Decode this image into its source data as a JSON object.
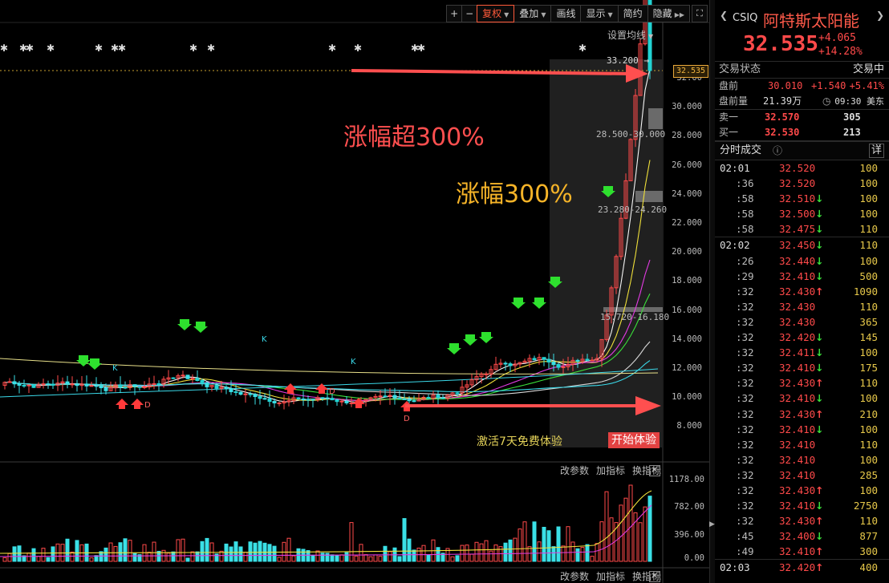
{
  "toolbar": {
    "plus": "+",
    "minus": "−",
    "adjust": "复权",
    "overlay": "叠加",
    "draw": "画线",
    "display": "显示",
    "compact": "简约",
    "hide": "隐藏",
    "ma_settings": "设置均线"
  },
  "price_axis": [
    "32.00",
    "30.000",
    "28.000",
    "26.000",
    "24.000",
    "22.000",
    "20.000",
    "18.000",
    "16.000",
    "14.000",
    "12.000",
    "10.000",
    "8.000"
  ],
  "volume_axis": [
    "1178.00",
    "782.00",
    "396.00",
    "0.00"
  ],
  "current_price_marker": "32.535",
  "labels": {
    "high": "33.200",
    "zone1": "28.500-30.000",
    "zone2": "23.280-24.260",
    "zone3": "15.720-16.180"
  },
  "annotations": {
    "over300": "涨幅超300%",
    "gain300": "涨幅300%"
  },
  "trial": {
    "text": "激活7天免费体验",
    "button": "开始体验"
  },
  "sub_toolbar": {
    "change_params": "改参数",
    "add_indicator": "加指标",
    "swap_indicator": "换指标",
    "close": "✕"
  },
  "quote": {
    "ticker": "CSIQ",
    "name": "阿特斯太阳能",
    "last": "32.535",
    "change": "+4.065",
    "change_pct": "+14.28%",
    "status_label": "交易状态",
    "status_value": "交易中",
    "premarket_label": "盘前",
    "premarket_price": "30.010",
    "premarket_change": "+1.540",
    "premarket_pct": "+5.41%",
    "premarket_vol_label": "盘前量",
    "premarket_vol": "21.39万",
    "time": "09:30 美东",
    "ask_label": "卖一",
    "ask_price": "32.570",
    "ask_size": "305",
    "bid_label": "买一",
    "bid_price": "32.530",
    "bid_size": "213",
    "ticks_title": "分时成交",
    "ticks_detail": "详"
  },
  "ticks": [
    {
      "time": "02:01",
      "price": "32.520",
      "dir": "",
      "vol": "100",
      "sep": false
    },
    {
      "time": ":36",
      "price": "32.520",
      "dir": "",
      "vol": "100",
      "sep": false
    },
    {
      "time": ":58",
      "price": "32.510",
      "dir": "dn",
      "vol": "100",
      "sep": false
    },
    {
      "time": ":58",
      "price": "32.500",
      "dir": "dn",
      "vol": "100",
      "sep": false
    },
    {
      "time": ":58",
      "price": "32.475",
      "dir": "dn",
      "vol": "110",
      "sep": false
    },
    {
      "time": "02:02",
      "price": "32.450",
      "dir": "dn",
      "vol": "110",
      "sep": true
    },
    {
      "time": ":26",
      "price": "32.440",
      "dir": "dn",
      "vol": "100",
      "sep": false
    },
    {
      "time": ":29",
      "price": "32.410",
      "dir": "dn",
      "vol": "500",
      "sep": false
    },
    {
      "time": ":32",
      "price": "32.430",
      "dir": "up",
      "vol": "1090",
      "sep": false
    },
    {
      "time": ":32",
      "price": "32.430",
      "dir": "",
      "vol": "110",
      "sep": false
    },
    {
      "time": ":32",
      "price": "32.430",
      "dir": "",
      "vol": "365",
      "sep": false
    },
    {
      "time": ":32",
      "price": "32.420",
      "dir": "dn",
      "vol": "145",
      "sep": false
    },
    {
      "time": ":32",
      "price": "32.411",
      "dir": "dn",
      "vol": "100",
      "sep": false
    },
    {
      "time": ":32",
      "price": "32.410",
      "dir": "dn",
      "vol": "175",
      "sep": false
    },
    {
      "time": ":32",
      "price": "32.430",
      "dir": "up",
      "vol": "110",
      "sep": false
    },
    {
      "time": ":32",
      "price": "32.410",
      "dir": "dn",
      "vol": "100",
      "sep": false
    },
    {
      "time": ":32",
      "price": "32.430",
      "dir": "up",
      "vol": "210",
      "sep": false
    },
    {
      "time": ":32",
      "price": "32.410",
      "dir": "dn",
      "vol": "100",
      "sep": false
    },
    {
      "time": ":32",
      "price": "32.410",
      "dir": "",
      "vol": "110",
      "sep": false
    },
    {
      "time": ":32",
      "price": "32.410",
      "dir": "",
      "vol": "100",
      "sep": false
    },
    {
      "time": ":32",
      "price": "32.410",
      "dir": "",
      "vol": "285",
      "sep": false
    },
    {
      "time": ":32",
      "price": "32.430",
      "dir": "up",
      "vol": "100",
      "sep": false
    },
    {
      "time": ":32",
      "price": "32.410",
      "dir": "dn",
      "vol": "2750",
      "sep": false
    },
    {
      "time": ":32",
      "price": "32.430",
      "dir": "up",
      "vol": "110",
      "sep": false
    },
    {
      "time": ":45",
      "price": "32.400",
      "dir": "dn",
      "vol": "877",
      "sep": false
    },
    {
      "time": ":49",
      "price": "32.410",
      "dir": "up",
      "vol": "300",
      "sep": false
    },
    {
      "time": "02:03",
      "price": "32.420",
      "dir": "up",
      "vol": "400",
      "sep": true
    }
  ]
}
